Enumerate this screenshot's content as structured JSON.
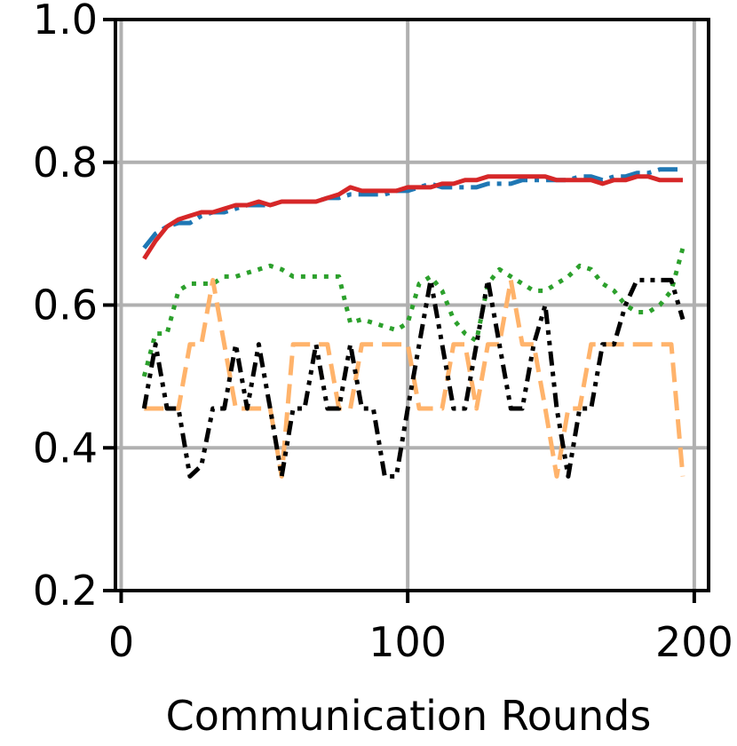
{
  "chart_data": {
    "type": "line",
    "title": "",
    "xlabel": "Communication Rounds",
    "ylabel": "",
    "xlim": [
      -2,
      205
    ],
    "ylim": [
      0.2,
      1.0
    ],
    "xticks": [
      0,
      100,
      200
    ],
    "xtick_labels": [
      "0",
      "100",
      "200"
    ],
    "yticks": [
      0.2,
      0.4,
      0.6,
      0.8,
      1.0
    ],
    "ytick_labels": [
      "0.2",
      "0.4",
      "0.6",
      "0.8",
      "1.0"
    ],
    "grid": true,
    "legend": "none",
    "series": [
      {
        "color": "#1f77b4",
        "style": "dashdot",
        "width": 5,
        "x": [
          8,
          12,
          16,
          20,
          24,
          28,
          32,
          36,
          40,
          44,
          48,
          52,
          56,
          60,
          64,
          68,
          72,
          76,
          80,
          84,
          88,
          92,
          96,
          100,
          104,
          108,
          112,
          116,
          120,
          124,
          128,
          132,
          136,
          140,
          144,
          148,
          152,
          156,
          160,
          164,
          168,
          172,
          176,
          180,
          184,
          188,
          192,
          196
        ],
        "y": [
          0.68,
          0.7,
          0.71,
          0.715,
          0.715,
          0.725,
          0.73,
          0.73,
          0.735,
          0.74,
          0.74,
          0.74,
          0.745,
          0.745,
          0.745,
          0.745,
          0.75,
          0.75,
          0.755,
          0.755,
          0.755,
          0.755,
          0.76,
          0.76,
          0.765,
          0.77,
          0.765,
          0.765,
          0.765,
          0.765,
          0.77,
          0.77,
          0.77,
          0.775,
          0.775,
          0.775,
          0.775,
          0.775,
          0.78,
          0.78,
          0.775,
          0.78,
          0.78,
          0.785,
          0.785,
          0.79,
          0.79,
          0.79
        ]
      },
      {
        "color": "#d62728",
        "style": "solid",
        "width": 5,
        "x": [
          8,
          12,
          16,
          20,
          24,
          28,
          32,
          36,
          40,
          44,
          48,
          52,
          56,
          60,
          64,
          68,
          72,
          76,
          80,
          84,
          88,
          92,
          96,
          100,
          104,
          108,
          112,
          116,
          120,
          124,
          128,
          132,
          136,
          140,
          144,
          148,
          152,
          156,
          160,
          164,
          168,
          172,
          176,
          180,
          184,
          188,
          192,
          196
        ],
        "y": [
          0.665,
          0.69,
          0.71,
          0.72,
          0.725,
          0.73,
          0.73,
          0.735,
          0.74,
          0.74,
          0.745,
          0.74,
          0.745,
          0.745,
          0.745,
          0.745,
          0.75,
          0.755,
          0.765,
          0.76,
          0.76,
          0.76,
          0.76,
          0.765,
          0.765,
          0.765,
          0.77,
          0.77,
          0.775,
          0.775,
          0.78,
          0.78,
          0.78,
          0.78,
          0.78,
          0.78,
          0.775,
          0.775,
          0.775,
          0.775,
          0.77,
          0.775,
          0.775,
          0.78,
          0.78,
          0.775,
          0.775,
          0.775
        ]
      },
      {
        "color": "#2ca02c",
        "style": "dotted",
        "width": 5,
        "x": [
          8,
          12,
          16,
          20,
          24,
          28,
          32,
          36,
          40,
          44,
          48,
          52,
          56,
          60,
          64,
          68,
          72,
          76,
          80,
          84,
          88,
          92,
          96,
          100,
          104,
          108,
          112,
          116,
          120,
          124,
          128,
          132,
          136,
          140,
          144,
          148,
          152,
          156,
          160,
          164,
          168,
          172,
          176,
          180,
          184,
          188,
          192,
          196
        ],
        "y": [
          0.5,
          0.56,
          0.56,
          0.62,
          0.63,
          0.63,
          0.63,
          0.64,
          0.64,
          0.645,
          0.65,
          0.655,
          0.65,
          0.64,
          0.64,
          0.64,
          0.64,
          0.64,
          0.575,
          0.58,
          0.575,
          0.57,
          0.565,
          0.575,
          0.63,
          0.64,
          0.62,
          0.58,
          0.56,
          0.55,
          0.63,
          0.65,
          0.64,
          0.63,
          0.62,
          0.62,
          0.63,
          0.64,
          0.655,
          0.65,
          0.63,
          0.62,
          0.6,
          0.59,
          0.59,
          0.6,
          0.62,
          0.68
        ]
      },
      {
        "color": "#ffb36b",
        "style": "dashed",
        "width": 5,
        "x": [
          8,
          12,
          16,
          20,
          24,
          28,
          32,
          36,
          40,
          44,
          48,
          52,
          56,
          60,
          64,
          68,
          72,
          76,
          80,
          84,
          88,
          92,
          96,
          100,
          104,
          108,
          112,
          116,
          120,
          124,
          128,
          132,
          136,
          140,
          144,
          148,
          152,
          156,
          160,
          164,
          168,
          172,
          176,
          180,
          184,
          188,
          192,
          196
        ],
        "y": [
          0.455,
          0.455,
          0.455,
          0.455,
          0.545,
          0.545,
          0.635,
          0.545,
          0.455,
          0.455,
          0.455,
          0.455,
          0.36,
          0.545,
          0.545,
          0.545,
          0.545,
          0.455,
          0.455,
          0.545,
          0.545,
          0.545,
          0.545,
          0.545,
          0.455,
          0.455,
          0.455,
          0.545,
          0.545,
          0.455,
          0.545,
          0.545,
          0.635,
          0.545,
          0.545,
          0.455,
          0.36,
          0.455,
          0.455,
          0.545,
          0.545,
          0.545,
          0.545,
          0.545,
          0.545,
          0.545,
          0.545,
          0.36
        ]
      },
      {
        "color": "#000000",
        "style": "dashdotdot",
        "width": 5,
        "x": [
          8,
          12,
          16,
          20,
          24,
          28,
          32,
          36,
          40,
          44,
          48,
          52,
          56,
          60,
          64,
          68,
          72,
          76,
          80,
          84,
          88,
          92,
          96,
          100,
          104,
          108,
          112,
          116,
          120,
          124,
          128,
          132,
          136,
          140,
          144,
          148,
          152,
          156,
          160,
          164,
          168,
          172,
          176,
          180,
          184,
          188,
          192,
          196
        ],
        "y": [
          0.455,
          0.545,
          0.455,
          0.455,
          0.36,
          0.375,
          0.455,
          0.455,
          0.545,
          0.455,
          0.545,
          0.455,
          0.36,
          0.455,
          0.455,
          0.545,
          0.455,
          0.455,
          0.545,
          0.455,
          0.455,
          0.36,
          0.36,
          0.455,
          0.545,
          0.635,
          0.545,
          0.455,
          0.455,
          0.545,
          0.635,
          0.545,
          0.455,
          0.455,
          0.545,
          0.6,
          0.455,
          0.36,
          0.455,
          0.455,
          0.545,
          0.545,
          0.6,
          0.635,
          0.635,
          0.635,
          0.635,
          0.58
        ]
      }
    ]
  }
}
